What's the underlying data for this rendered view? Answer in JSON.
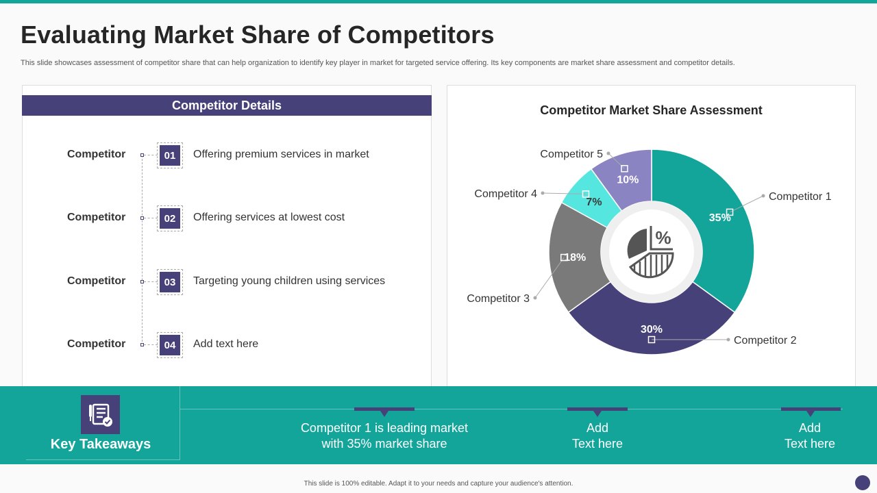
{
  "title": "Evaluating Market Share of Competitors",
  "subtitle": "This slide showcases assessment of competitor share that can help organization to identify key player in market for targeted service offering. Its key components are market share assessment and competitor details.",
  "left_panel": {
    "header": "Competitor Details",
    "rows": [
      {
        "label": "Competitor",
        "num": "01",
        "desc": "Offering premium services in market"
      },
      {
        "label": "Competitor",
        "num": "02",
        "desc": "Offering services at lowest cost"
      },
      {
        "label": "Competitor",
        "num": "03",
        "desc": "Targeting young children using services"
      },
      {
        "label": "Competitor",
        "num": "04",
        "desc": "Add text here"
      }
    ]
  },
  "colors": {
    "teal": "#13a59a",
    "indigo": "#474179",
    "gray": "#7a7a7a",
    "cyan": "#55e6e0",
    "lavender": "#8a84c2"
  },
  "chart_data": {
    "type": "pie",
    "title": "Competitor Market Share Assessment",
    "center_icon": "pie-chart-percent-icon",
    "slices": [
      {
        "label": "Competitor 1",
        "value": 35,
        "display": "35%",
        "color": "#13a59a"
      },
      {
        "label": "Competitor 2",
        "value": 30,
        "display": "30%",
        "color": "#474179"
      },
      {
        "label": "Competitor 3",
        "value": 18,
        "display": "18%",
        "color": "#7a7a7a"
      },
      {
        "label": "Competitor 4",
        "value": 7,
        "display": "7%",
        "color": "#55e6e0"
      },
      {
        "label": "Competitor 5",
        "value": 10,
        "display": "10%",
        "color": "#8a84c2"
      }
    ]
  },
  "key_takeaways": {
    "label": "Key Takeaways",
    "icon": "checklist-icon",
    "items": [
      {
        "line1": "Competitor 1 is leading market",
        "line2": "with 35% market share"
      },
      {
        "line1": "Add",
        "line2": "Text here"
      },
      {
        "line1": "Add",
        "line2": "Text here"
      }
    ]
  },
  "footer": "This slide is 100% editable. Adapt it to your needs and capture your audience's attention."
}
